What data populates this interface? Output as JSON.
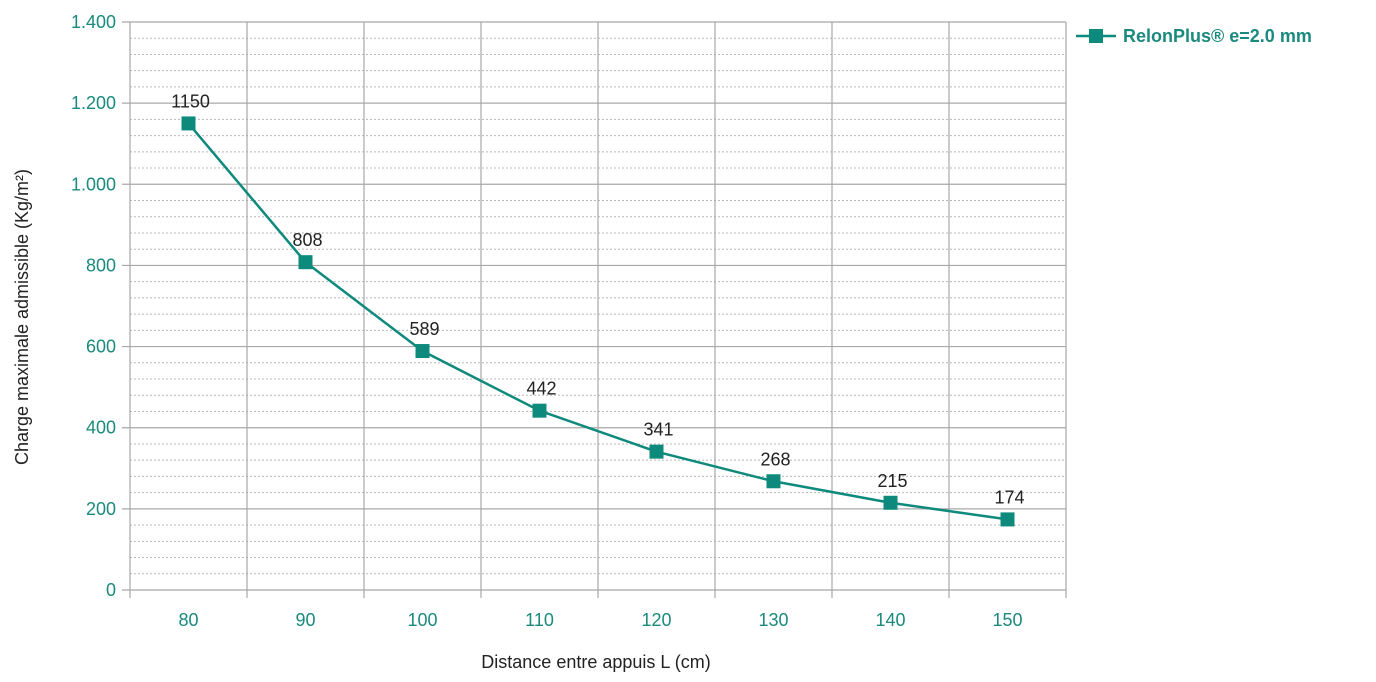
{
  "chart_data": {
    "type": "line",
    "title": "",
    "xlabel": "Distance entre appuis L (cm)",
    "ylabel": "Charge maximale admissible (Kg/m²)",
    "categories": [
      "80",
      "90",
      "100",
      "110",
      "120",
      "130",
      "140",
      "150"
    ],
    "series": [
      {
        "name": "RelonPlus® e=2.0 mm",
        "values": [
          1150,
          808,
          589,
          442,
          341,
          268,
          215,
          174
        ],
        "labels": [
          "1150",
          "808",
          "589",
          "442",
          "341",
          "268",
          "215",
          "174"
        ],
        "marker": "square"
      }
    ],
    "ylim": [
      0,
      1400
    ],
    "y_ticks": [
      0,
      200,
      400,
      600,
      800,
      1000,
      1200,
      1400
    ],
    "y_tick_labels": [
      "0",
      "200",
      "400",
      "600",
      "800",
      "1.000",
      "1.200",
      "1.400"
    ],
    "grid": true,
    "minor_grid": true,
    "legend_position": "top-right",
    "colors": {
      "series": "#0e8a7c",
      "tick_labels": "#1a8a7e",
      "grid_major": "#a8a8a8",
      "grid_minor": "#b8b8b8",
      "text": "#222222"
    }
  }
}
